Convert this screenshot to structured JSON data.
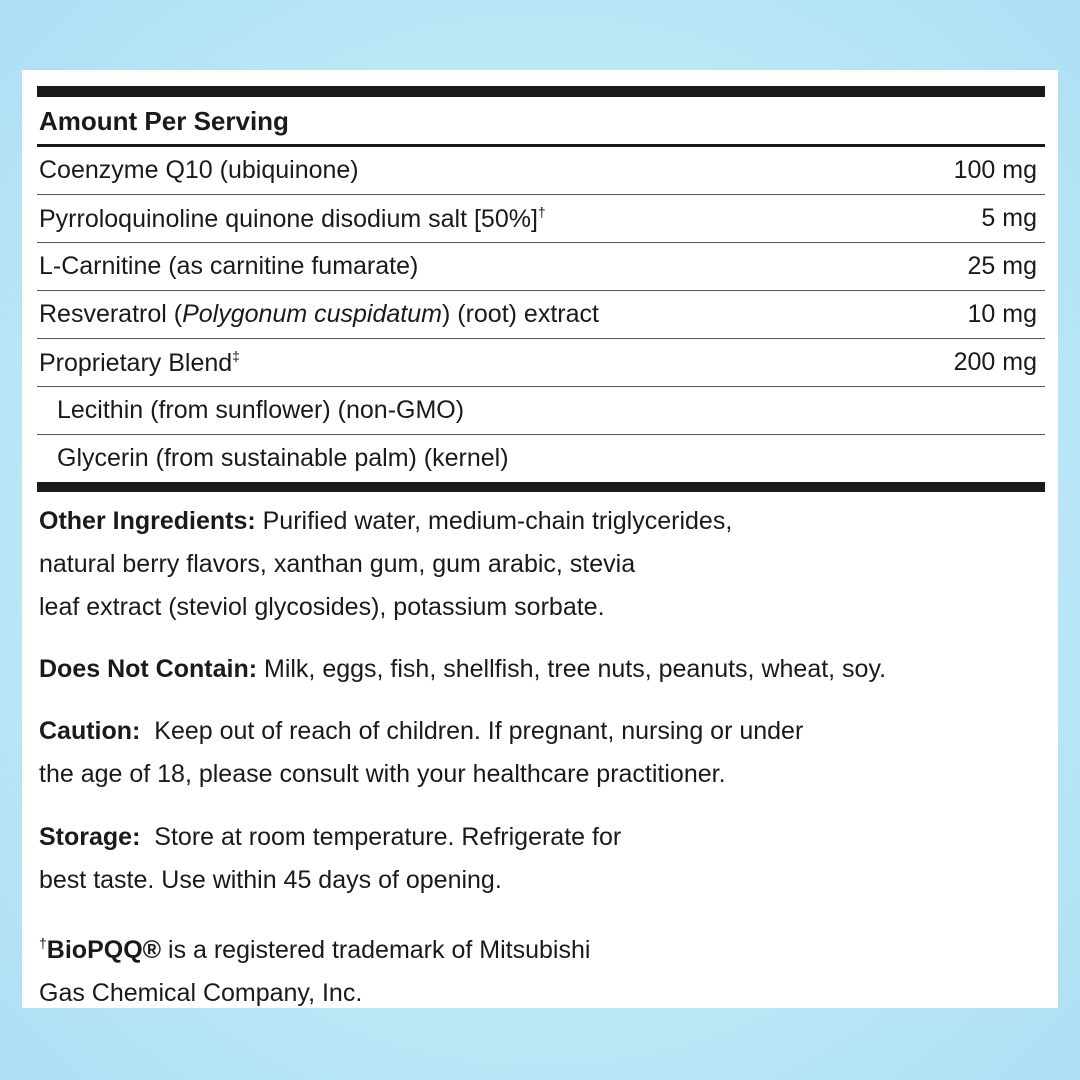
{
  "table": {
    "header": "Amount Per Serving",
    "rows": [
      {
        "name": "Coenzyme Q10 (ubiquinone)",
        "amount": "100 mg"
      },
      {
        "name": "Pyrroloquinoline quinone disodium salt [50%]",
        "mark": "†",
        "amount": "5 mg"
      },
      {
        "name": "L-Carnitine (as carnitine fumarate)",
        "amount": "25 mg"
      },
      {
        "name_pre": "Resveratrol (",
        "name_italic": "Polygonum cuspidatum",
        "name_post": ") (root) extract",
        "amount": "10 mg"
      },
      {
        "name": "Proprietary Blend",
        "mark": "‡",
        "amount": "200 mg"
      },
      {
        "name": "Lecithin (from sunflower) (non-GMO)"
      },
      {
        "name": "Glycerin (from sustainable palm) (kernel)"
      }
    ]
  },
  "other_ingredients": {
    "label": "Other Ingredients:",
    "text": " Purified water, medium-chain triglycerides,",
    "text2": "natural berry flavors, xanthan gum, gum arabic, stevia",
    "text3": "leaf extract (steviol glycosides), potassium sorbate."
  },
  "does_not_contain": {
    "label": "Does Not Contain:",
    "text": " Milk, eggs, fish, shellfish, tree nuts, peanuts, wheat, soy."
  },
  "caution": {
    "label": "Caution:",
    "text": "  Keep out of reach of children. If pregnant, nursing or under",
    "text2": "the age of 18, please consult with your healthcare practitioner."
  },
  "storage": {
    "label": "Storage:",
    "text": "  Store at room temperature. Refrigerate for",
    "text2": "best taste. Use within 45 days of opening."
  },
  "footnote": {
    "mark": "†",
    "brand": "BioPQQ®",
    "text": " is a registered trademark of Mitsubishi",
    "text2": "Gas Chemical Company, Inc."
  }
}
